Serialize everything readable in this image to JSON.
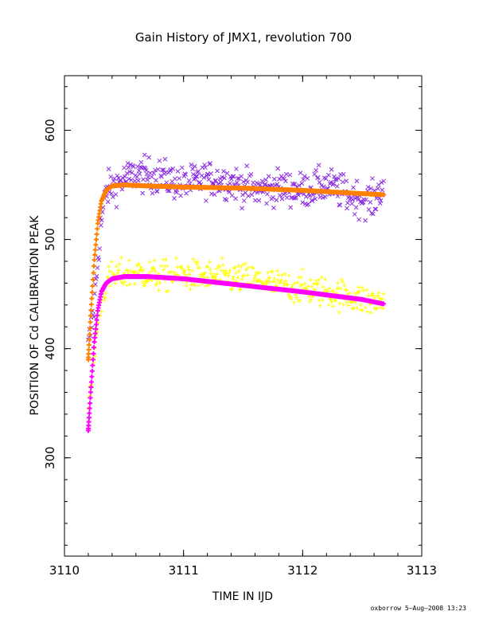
{
  "chart_data": {
    "type": "scatter",
    "title": "Gain History of JMX1, revolution 700",
    "xlabel": "TIME IN IJD",
    "ylabel": "POSITION OF Cd CALIBRATION PEAK",
    "xlim": [
      3110,
      3113
    ],
    "ylim": [
      210,
      650
    ],
    "xticks": [
      3110,
      3111,
      3112,
      3113
    ],
    "yticks": [
      300,
      400,
      500,
      600
    ],
    "grid": false,
    "colors": {
      "purple_points": "#8a2be2",
      "yellow_points": "#ffff00",
      "orange_curve": "#ff8000",
      "magenta_curve": "#ff00ff"
    },
    "series": [
      {
        "marker": "x",
        "color": "#8a2be2",
        "x": [
          3110.2,
          3110.25,
          3110.3,
          3110.35,
          3110.4,
          3110.5,
          3110.6,
          3110.8,
          3111.0,
          3111.2,
          3111.4,
          3111.6,
          3111.8,
          3112.0,
          3112.2,
          3112.4,
          3112.6,
          3112.68
        ],
        "y": [
          400,
          440,
          510,
          545,
          548,
          555,
          560,
          558,
          550,
          556,
          553,
          545,
          548,
          545,
          550,
          540,
          535,
          552
        ],
        "spread": 18
      },
      {
        "marker": "+",
        "color": "#ffff00",
        "x": [
          3110.2,
          3110.25,
          3110.3,
          3110.35,
          3110.4,
          3110.5,
          3110.6,
          3110.8,
          3111.0,
          3111.2,
          3111.4,
          3111.6,
          3111.8,
          3112.0,
          3112.2,
          3112.4,
          3112.6,
          3112.68
        ],
        "y": [
          340,
          395,
          440,
          460,
          465,
          468,
          470,
          466,
          468,
          466,
          465,
          463,
          458,
          455,
          452,
          448,
          442,
          445
        ],
        "spread": 16
      },
      {
        "marker": "+",
        "color": "#ff8000",
        "x": [
          3110.2,
          3110.22,
          3110.25,
          3110.28,
          3110.31,
          3110.35,
          3110.4,
          3110.5,
          3110.7,
          3111.0,
          3111.5,
          3112.0,
          3112.5,
          3112.68
        ],
        "y": [
          390,
          430,
          480,
          515,
          535,
          545,
          549,
          550,
          549,
          548,
          547,
          545,
          542,
          541
        ]
      },
      {
        "marker": "+",
        "color": "#ff00ff",
        "x": [
          3110.2,
          3110.22,
          3110.25,
          3110.28,
          3110.31,
          3110.35,
          3110.4,
          3110.5,
          3110.7,
          3111.0,
          3111.5,
          3112.0,
          3112.5,
          3112.68
        ],
        "y": [
          325,
          360,
          405,
          435,
          452,
          460,
          464,
          466,
          466,
          464,
          458,
          452,
          445,
          441
        ]
      }
    ]
  },
  "footer": "oxborrow   5–Aug–2008 13:23"
}
